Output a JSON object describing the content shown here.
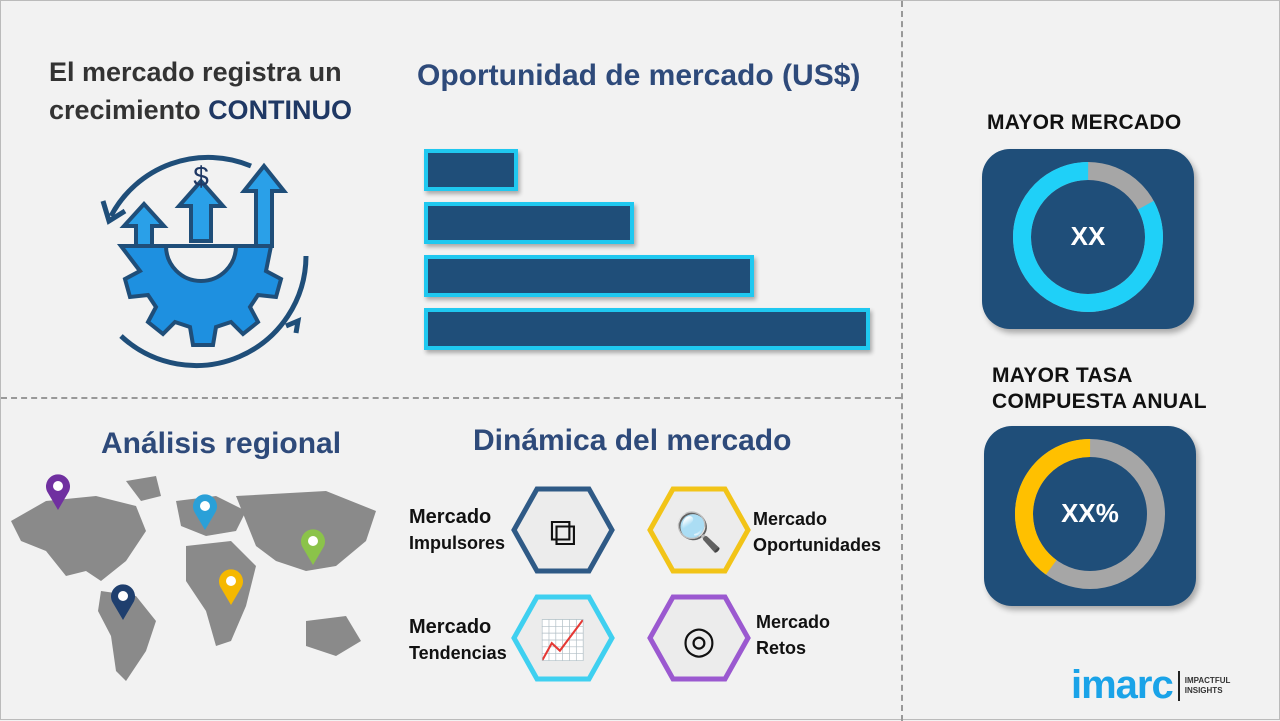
{
  "headline": {
    "line1": "El mercado registra un",
    "line2_prefix": "crecimiento ",
    "line2_emphasis": "CONTINUO"
  },
  "growth_icon": "gear-arrows-dollar-icon",
  "opportunity": {
    "title": "Oportunidad de mercado (US$)",
    "relative_bar_lengths_percent": [
      21,
      47,
      74,
      100
    ]
  },
  "regional": {
    "title": "Análisis regional",
    "pins": [
      {
        "color": "#7030a0"
      },
      {
        "color": "#2aa0d8"
      },
      {
        "color": "#8bc34a"
      },
      {
        "color": "#f5b800"
      },
      {
        "color": "#1f3f6e"
      }
    ]
  },
  "dynamics": {
    "title": "Dinámica del mercado",
    "items": [
      {
        "line1": "Mercado",
        "line2": "Impulsores",
        "icon": "puzzle-icon",
        "color": "#2f5a86"
      },
      {
        "line1": "Mercado",
        "line2": "Oportunidades",
        "icon": "magnifier-dollar-icon",
        "color": "#f2c418"
      },
      {
        "line1": "Mercado",
        "line2": "Tendencias",
        "icon": "chart-growth-icon",
        "color": "#3fd0f0"
      },
      {
        "line1": "Mercado",
        "line2": "Retos",
        "icon": "target-icon",
        "color": "#9b59d0"
      }
    ]
  },
  "largest_market": {
    "title": "MAYOR MERCADO",
    "value": "XX",
    "highlight_fraction": 0.83,
    "color": "#1fd0f8"
  },
  "highest_cagr": {
    "title_line1": "MAYOR TASA",
    "title_line2": "COMPUESTA ANUAL",
    "value": "XX%",
    "highlight_fraction": 0.4,
    "color": "#ffc000"
  },
  "logo": {
    "brand": "imarc",
    "tagline1": "IMPACTFUL",
    "tagline2": "INSIGHTS"
  }
}
